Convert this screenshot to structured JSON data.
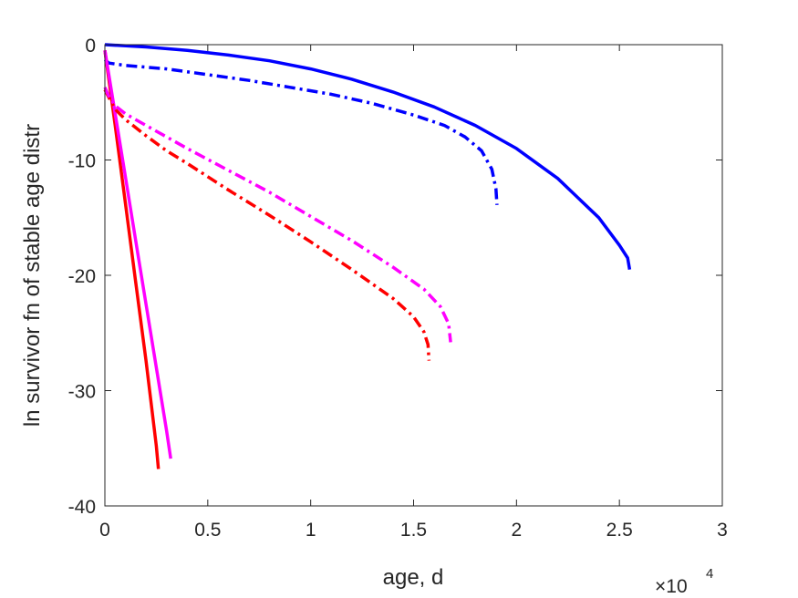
{
  "chart_data": {
    "type": "line",
    "title": "",
    "xlabel": "age, d",
    "ylabel": "ln survivor fn of stable age distr",
    "xlim": [
      0,
      30000
    ],
    "ylim": [
      -40,
      0
    ],
    "x_ticks": [
      0,
      5000,
      10000,
      15000,
      20000,
      25000,
      30000
    ],
    "x_tick_labels": [
      "0",
      "0.5",
      "1",
      "1.5",
      "2",
      "2.5",
      "3"
    ],
    "y_ticks": [
      0,
      -10,
      -20,
      -30,
      -40
    ],
    "y_tick_labels": [
      "0",
      "-10",
      "-20",
      "-30",
      "-40"
    ],
    "x_multiplier": "×10",
    "x_multiplier_exponent": "4",
    "grid": false,
    "legend": "none",
    "series": [
      {
        "color": "#0000ff",
        "style": "solid",
        "x": [
          0,
          2000,
          4000,
          6000,
          8000,
          10000,
          12000,
          14000,
          16000,
          18000,
          20000,
          22000,
          24000,
          25000,
          25400,
          25500
        ],
        "y": [
          0,
          -0.2,
          -0.5,
          -0.9,
          -1.4,
          -2.1,
          -3.0,
          -4.1,
          -5.4,
          -7.0,
          -9.0,
          -11.6,
          -15.0,
          -17.4,
          -18.5,
          -19.5
        ]
      },
      {
        "color": "#0000ff",
        "style": "dashdot",
        "x": [
          0,
          200,
          1000,
          3000,
          5000,
          7000,
          9000,
          11000,
          13000,
          15000,
          16500,
          17500,
          18300,
          18800,
          19000,
          19050
        ],
        "y": [
          -1.3,
          -1.6,
          -1.8,
          -2.1,
          -2.6,
          -3.1,
          -3.7,
          -4.3,
          -5.1,
          -6.1,
          -7.0,
          -8.0,
          -9.2,
          -10.8,
          -12.5,
          -13.9
        ]
      },
      {
        "color": "#ff0000",
        "style": "solid",
        "x": [
          0,
          500,
          1000,
          1500,
          2000,
          2500,
          2600
        ],
        "y": [
          -0.5,
          -7.0,
          -13.8,
          -20.6,
          -27.4,
          -34.8,
          -36.8
        ]
      },
      {
        "color": "#ff00ff",
        "style": "solid",
        "x": [
          0,
          500,
          1000,
          1500,
          2000,
          2500,
          3000,
          3200
        ],
        "y": [
          -0.5,
          -6.0,
          -11.5,
          -17.0,
          -22.5,
          -28.0,
          -33.5,
          -35.9
        ]
      },
      {
        "color": "#ff0000",
        "style": "dashdot",
        "x": [
          0,
          200,
          500,
          1000,
          2000,
          3000,
          4000,
          6000,
          8000,
          10000,
          12000,
          14000,
          15000,
          15500,
          15700,
          15750
        ],
        "y": [
          -3.9,
          -4.6,
          -5.6,
          -6.5,
          -7.9,
          -9.2,
          -10.3,
          -12.6,
          -14.8,
          -17.1,
          -19.5,
          -22.0,
          -23.6,
          -24.9,
          -26.0,
          -27.4
        ]
      },
      {
        "color": "#ff00ff",
        "style": "dashdot",
        "x": [
          0,
          200,
          500,
          1000,
          2000,
          3000,
          4000,
          6000,
          8000,
          10000,
          12000,
          14000,
          15500,
          16300,
          16700,
          16800
        ],
        "y": [
          -3.7,
          -4.5,
          -5.3,
          -6.0,
          -7.0,
          -8.0,
          -9.0,
          -10.9,
          -12.8,
          -14.9,
          -17.0,
          -19.3,
          -21.2,
          -22.7,
          -24.2,
          -25.8
        ]
      }
    ]
  }
}
